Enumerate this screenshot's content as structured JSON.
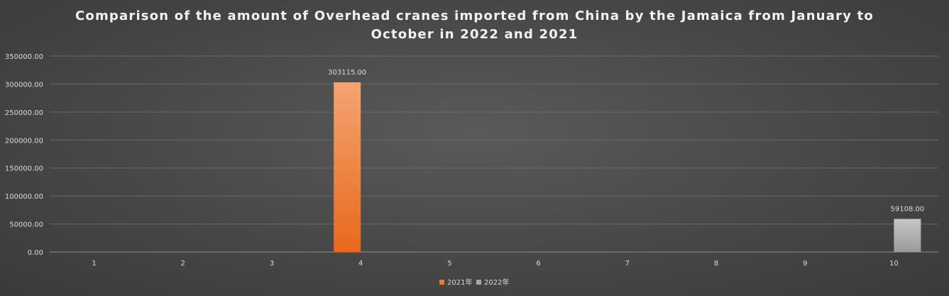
{
  "chart_data": {
    "type": "bar",
    "title_lines": [
      "Comparison of the amount of Overhead cranes imported from China by the Jamaica from January to",
      "October in 2022 and 2021"
    ],
    "xlabel": "",
    "ylabel": "",
    "categories": [
      "1",
      "2",
      "3",
      "4",
      "5",
      "6",
      "7",
      "8",
      "9",
      "10"
    ],
    "series": [
      {
        "name": "2021年",
        "color": "#ed7d31",
        "values": [
          0,
          0,
          0,
          303115,
          0,
          0,
          0,
          0,
          0,
          0
        ],
        "labels": [
          "",
          "",
          "",
          "303115.00",
          "",
          "",
          "",
          "",
          "",
          ""
        ]
      },
      {
        "name": "2022年",
        "color": "#a5a5a5",
        "values": [
          0,
          0,
          0,
          0,
          0,
          0,
          0,
          0,
          0,
          59108
        ],
        "labels": [
          "",
          "",
          "",
          "",
          "",
          "",
          "",
          "",
          "",
          "59108.00"
        ]
      }
    ],
    "ylim": [
      0,
      350000
    ],
    "yticks": [
      0,
      50000,
      100000,
      150000,
      200000,
      250000,
      300000,
      350000
    ],
    "ytick_labels": [
      "0.00",
      "50000.00",
      "100000.00",
      "150000.00",
      "200000.00",
      "250000.00",
      "300000.00",
      "350000.00"
    ],
    "grid": true,
    "legend_position": "bottom"
  }
}
